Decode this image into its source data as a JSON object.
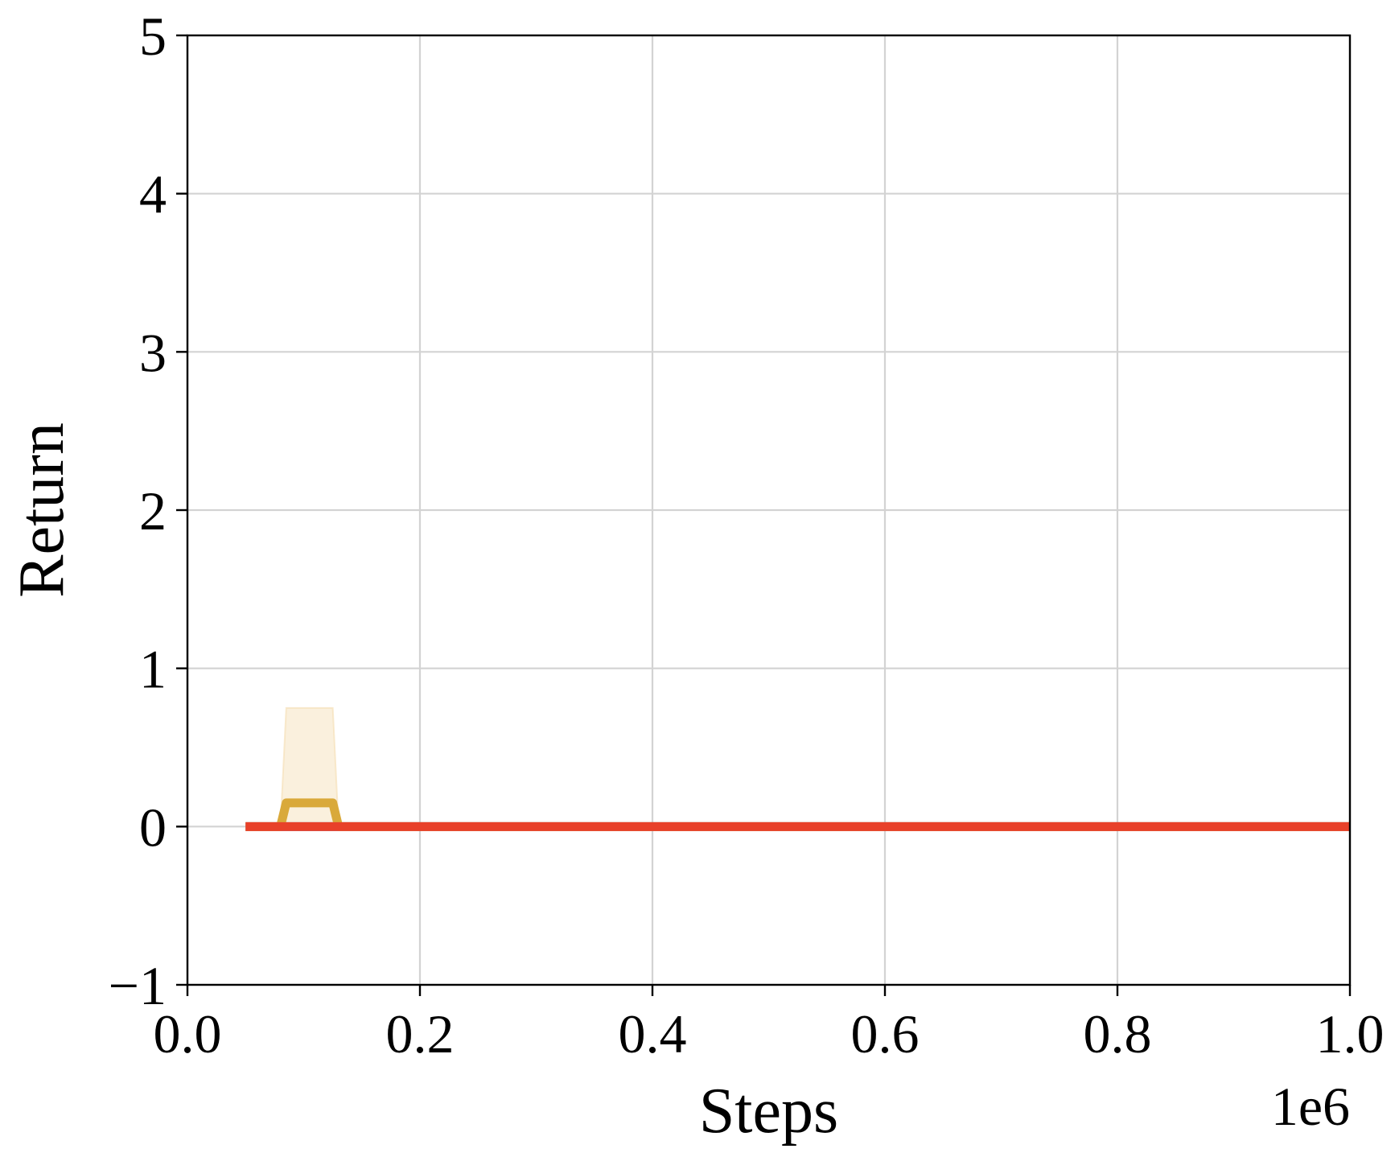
{
  "chart_data": {
    "type": "line",
    "title": "",
    "xlabel": "Steps",
    "ylabel": "Return",
    "x_offset_label": "1e6",
    "xlim": [
      0.0,
      1.0
    ],
    "ylim": [
      -1,
      5
    ],
    "x_scale": 1000000,
    "grid": true,
    "legend": "none",
    "x_ticks": [
      {
        "value": 0.0,
        "label": "0.0"
      },
      {
        "value": 0.2,
        "label": "0.2"
      },
      {
        "value": 0.4,
        "label": "0.4"
      },
      {
        "value": 0.6,
        "label": "0.6"
      },
      {
        "value": 0.8,
        "label": "0.8"
      },
      {
        "value": 1.0,
        "label": "1.0"
      }
    ],
    "y_ticks": [
      {
        "value": -1,
        "label": "−1"
      },
      {
        "value": 0,
        "label": "0"
      },
      {
        "value": 1,
        "label": "1"
      },
      {
        "value": 2,
        "label": "2"
      },
      {
        "value": 3,
        "label": "3"
      },
      {
        "value": 4,
        "label": "4"
      },
      {
        "value": 5,
        "label": "5"
      }
    ],
    "series": [
      {
        "color": "#5470c6",
        "x": [
          0.05,
          1.0
        ],
        "y": [
          0,
          0
        ]
      },
      {
        "color": "#d9a93a",
        "band_color": "#f5deb3",
        "x": [
          0.05,
          0.08,
          0.085,
          0.125,
          0.13,
          1.0
        ],
        "y": [
          0,
          0,
          0.15,
          0.15,
          0,
          0
        ],
        "band_x": [
          0.08,
          0.085,
          0.125,
          0.13
        ],
        "band_lower": [
          0,
          0,
          0,
          0
        ],
        "band_upper": [
          0,
          0.75,
          0.75,
          0
        ]
      },
      {
        "color": "#e8412a",
        "x": [
          0.05,
          1.0
        ],
        "y": [
          0,
          0
        ]
      }
    ]
  }
}
